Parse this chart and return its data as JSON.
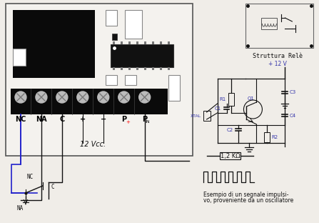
{
  "bg_color": "#f0ede8",
  "relay_label": "Struttura Relè",
  "vcc_label": "12 Vcc.",
  "plus12_label": "+ 12 V",
  "kohm_label": "1,2 KΩ",
  "signal_label1": "Esempio di un segnale impulsi-",
  "signal_label2": "vo, proveniente da un oscillatore",
  "terminal_labels": [
    "NC",
    "NA",
    "C",
    "+",
    "−",
    "P",
    "P"
  ],
  "terminal_sub_plus": "+",
  "terminal_sub_in": "IN",
  "comp_color": "#3333aa",
  "wire_color": "#111111",
  "blue_wire": "#2222cc",
  "board_bg": "#f4f2ee",
  "board_edge": "#555555",
  "black_fill": "#0a0a0a",
  "screw_gray": "#bbbbbb",
  "ic_fill": "#111111"
}
